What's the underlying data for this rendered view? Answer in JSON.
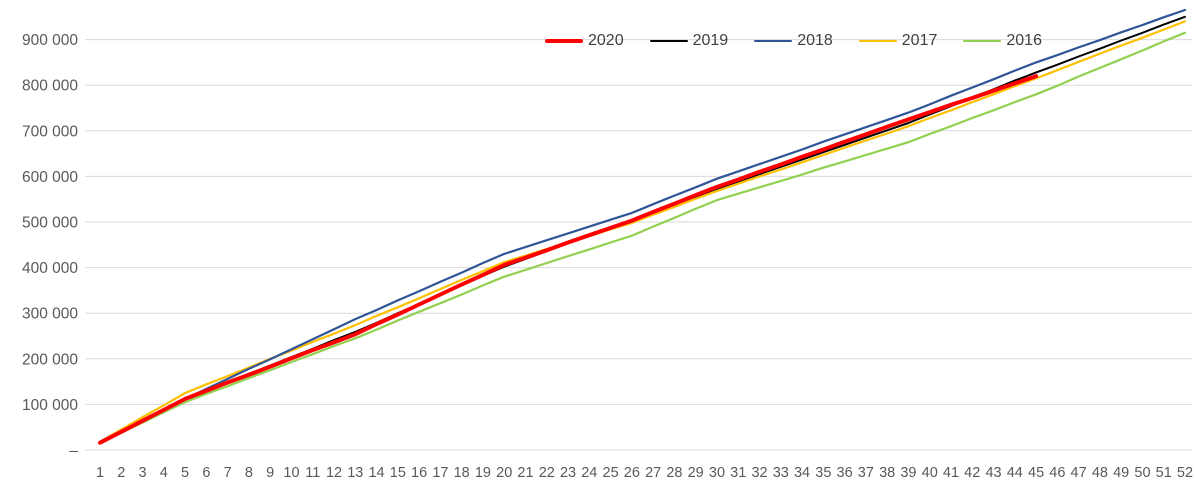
{
  "colors": {
    "background": "#ffffff",
    "gridline": "#d9d9d9",
    "axis_label": "#595959",
    "legend_text": "#404040"
  },
  "chart_data": {
    "type": "line",
    "title": "",
    "xlabel": "",
    "ylabel": "",
    "legend_position": "top-center",
    "grid": "horizontal",
    "ylim": [
      0,
      970000
    ],
    "categories": [
      1,
      2,
      3,
      4,
      5,
      6,
      7,
      8,
      9,
      10,
      11,
      12,
      13,
      14,
      15,
      16,
      17,
      18,
      19,
      20,
      21,
      22,
      23,
      24,
      25,
      26,
      27,
      28,
      29,
      30,
      31,
      32,
      33,
      34,
      35,
      36,
      37,
      38,
      39,
      40,
      41,
      42,
      43,
      44,
      45,
      46,
      47,
      48,
      49,
      50,
      51,
      52
    ],
    "yticks": [
      {
        "value": 0,
        "label": "–"
      },
      {
        "value": 100000,
        "label": "100 000"
      },
      {
        "value": 200000,
        "label": "200 000"
      },
      {
        "value": 300000,
        "label": "300 000"
      },
      {
        "value": 400000,
        "label": "400 000"
      },
      {
        "value": 500000,
        "label": "500 000"
      },
      {
        "value": 600000,
        "label": "600 000"
      },
      {
        "value": 700000,
        "label": "700 000"
      },
      {
        "value": 800000,
        "label": "800 000"
      },
      {
        "value": 900000,
        "label": "900 000"
      }
    ],
    "series": [
      {
        "name": "2020",
        "color": "#ff0000",
        "width": 4,
        "values": [
          16000,
          40000,
          64000,
          88000,
          112000,
          130000,
          148000,
          165000,
          183000,
          201000,
          219000,
          236000,
          254000,
          276000,
          297000,
          319000,
          341000,
          363000,
          384000,
          406000,
          422000,
          438000,
          455000,
          471000,
          487000,
          503000,
          522000,
          540000,
          559000,
          577000,
          593000,
          610000,
          626000,
          643000,
          659000,
          676000,
          692000,
          709000,
          725000,
          741000,
          757000,
          772000,
          788000,
          804000,
          820000
        ]
      },
      {
        "name": "2019",
        "color": "#000000",
        "width": 2,
        "values": [
          16000,
          40000,
          64000,
          88000,
          112000,
          130000,
          149000,
          167000,
          185000,
          204000,
          222000,
          241000,
          259000,
          279000,
          300000,
          320000,
          341000,
          361000,
          382000,
          402000,
          419000,
          436000,
          454000,
          471000,
          488000,
          505000,
          522000,
          539000,
          556000,
          573000,
          589000,
          605000,
          621000,
          637000,
          653000,
          669000,
          685000,
          701000,
          717000,
          736000,
          754000,
          773000,
          791000,
          810000,
          828000,
          845000,
          863000,
          880000,
          898000,
          915000,
          933000,
          950000
        ]
      },
      {
        "name": "2018",
        "color": "#2f5597",
        "width": 2.2,
        "values": [
          17000,
          41000,
          65000,
          88000,
          112000,
          134000,
          156000,
          178000,
          199000,
          221000,
          243000,
          265000,
          287000,
          307000,
          328000,
          348000,
          369000,
          389000,
          410000,
          430000,
          445000,
          460000,
          475000,
          490000,
          505000,
          520000,
          539000,
          558000,
          576000,
          595000,
          611000,
          627000,
          643000,
          659000,
          676000,
          692000,
          708000,
          724000,
          740000,
          758000,
          777000,
          795000,
          813000,
          832000,
          850000,
          866000,
          883000,
          899000,
          916000,
          932000,
          949000,
          965000
        ]
      },
      {
        "name": "2017",
        "color": "#ffc000",
        "width": 2.2,
        "values": [
          18000,
          45000,
          72000,
          98000,
          125000,
          144000,
          162000,
          181000,
          200000,
          218000,
          237000,
          255000,
          274000,
          294000,
          313000,
          333000,
          353000,
          373000,
          392000,
          412000,
          426000,
          441000,
          455000,
          469000,
          484000,
          498000,
          516000,
          533000,
          551000,
          568000,
          584000,
          600000,
          615000,
          631000,
          647000,
          663000,
          679000,
          694000,
          710000,
          728000,
          745000,
          763000,
          780000,
          798000,
          815000,
          833000,
          851000,
          869000,
          887000,
          904000,
          922000,
          940000
        ]
      },
      {
        "name": "2016",
        "color": "#92d050",
        "width": 2.2,
        "values": [
          15000,
          38000,
          60000,
          83000,
          105000,
          123000,
          140000,
          158000,
          175000,
          193000,
          210000,
          228000,
          245000,
          264000,
          284000,
          303000,
          322000,
          341000,
          361000,
          380000,
          395000,
          410000,
          425000,
          440000,
          455000,
          470000,
          490000,
          509000,
          529000,
          548000,
          562000,
          576000,
          590000,
          604000,
          619000,
          633000,
          647000,
          661000,
          675000,
          693000,
          710000,
          728000,
          745000,
          763000,
          780000,
          799000,
          819000,
          838000,
          857000,
          876000,
          896000,
          915000
        ]
      }
    ]
  }
}
